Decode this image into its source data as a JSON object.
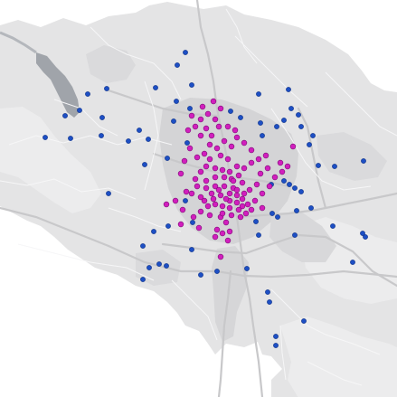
{
  "map": {
    "colors": {
      "background": "#ffffff",
      "land": "#e3e3e4",
      "land_light": "#ececed",
      "built_up": "#d2d2d4",
      "road": "#f8f8f9",
      "major_road": "#c6c6c8",
      "lake": "#9fa3a9",
      "marker_blue": "#1d4fc4",
      "marker_blue_stroke": "#0c2f86",
      "marker_magenta": "#d11fbd",
      "marker_magenta_stroke": "#7e0b77"
    },
    "layers": [
      {
        "id": "blue-points",
        "color": "marker_blue"
      },
      {
        "id": "magenta-points",
        "color": "marker_magenta"
      }
    ]
  }
}
